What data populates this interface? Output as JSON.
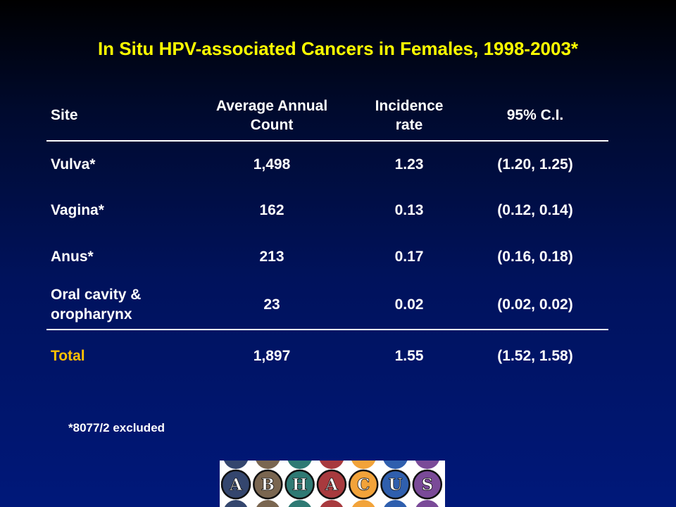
{
  "slide": {
    "title": "In Situ HPV-associated Cancers in Females, 1998-2003*",
    "footnote": "*8077/2 excluded"
  },
  "table": {
    "headers": {
      "site": "Site",
      "count_line1": "Average Annual",
      "count_line2": "Count",
      "rate_line1": "Incidence",
      "rate_line2": "rate",
      "ci": "95% C.I."
    },
    "rows": [
      {
        "site": "Vulva*",
        "count": "1,498",
        "rate": "1.23",
        "ci": "(1.20, 1.25)"
      },
      {
        "site": "Vagina*",
        "count": "162",
        "rate": "0.13",
        "ci": "(0.12, 0.14)"
      },
      {
        "site": "Anus*",
        "count": "213",
        "rate": "0.17",
        "ci": "(0.16, 0.18)"
      },
      {
        "site_line1": "Oral cavity &",
        "site_line2": "oropharynx",
        "count": "23",
        "rate": "0.02",
        "ci": "(0.02, 0.02)"
      }
    ],
    "total": {
      "site": "Total",
      "count": "1,897",
      "rate": "1.55",
      "ci": "(1.52, 1.58)"
    }
  },
  "logo": {
    "letters": [
      "A",
      "B",
      "H",
      "A",
      "C",
      "U",
      "S"
    ],
    "colors": [
      "#34466e",
      "#7a6650",
      "#2f7a74",
      "#a83a3e",
      "#f2a33a",
      "#2f5fae",
      "#7a4a98"
    ]
  },
  "colors": {
    "title": "#ffff00",
    "total_label": "#ffc000",
    "text": "#ffffff"
  }
}
